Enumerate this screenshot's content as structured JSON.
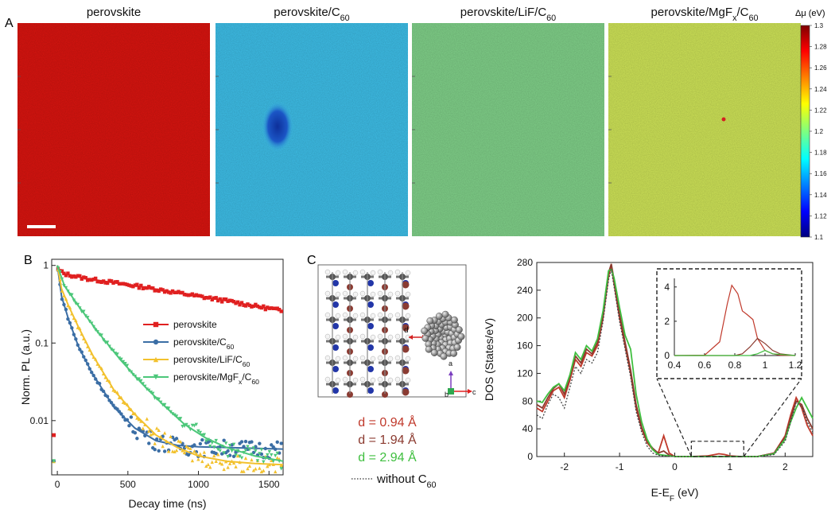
{
  "panel_labels": {
    "a": "A",
    "b": "B",
    "c": "C"
  },
  "maps": [
    {
      "title": "perovskite",
      "color": "#d8140f"
    },
    {
      "title": "perovskite/C",
      "sub": "60",
      "color": "#3dbde6"
    },
    {
      "title": "perovskite/LiF/C",
      "sub": "60",
      "color": "#7fcf88"
    },
    {
      "title": "perovskite/MgF",
      "sub_x": "x",
      "title2": "/C",
      "sub": "60",
      "color": "#cde257"
    }
  ],
  "colorbar": {
    "label": "Δμ (eV)",
    "ticks": [
      "1.3",
      "1.28",
      "1.26",
      "1.24",
      "1.22",
      "1.2",
      "1.18",
      "1.16",
      "1.14",
      "1.12",
      "1.1"
    ]
  },
  "chart_data": [
    {
      "type": "line",
      "panel": "B",
      "xlabel": "Decay time (ns)",
      "ylabel": "Norm. PL (a.u.)",
      "yscale": "log",
      "xlim": [
        -40,
        1600
      ],
      "ylim": [
        0.002,
        1.2
      ],
      "xticks": [
        "0",
        "500",
        "1000",
        "1500"
      ],
      "yticks": [
        "0.01",
        "0.1",
        "1"
      ],
      "legend_position": "center-right",
      "series": [
        {
          "name": "perovskite",
          "color": "#e02020",
          "marker": "square",
          "x": [
            0,
            5,
            50,
            200,
            400,
            600,
            800,
            1000,
            1200,
            1400,
            1600
          ],
          "y": [
            1,
            0.88,
            0.78,
            0.68,
            0.6,
            0.53,
            0.46,
            0.4,
            0.35,
            0.3,
            0.26
          ]
        },
        {
          "name": "perovskite/C",
          "sub": "60",
          "color": "#3b6ea5",
          "marker": "circle",
          "x": [
            0,
            30,
            80,
            150,
            250,
            400,
            550,
            700,
            850,
            1000,
            1200,
            1400,
            1600
          ],
          "y": [
            1,
            0.4,
            0.2,
            0.09,
            0.04,
            0.015,
            0.008,
            0.0055,
            0.0048,
            0.0046,
            0.0045,
            0.0044,
            0.0043
          ]
        },
        {
          "name": "perovskite/LiF/C",
          "sub": "60",
          "color": "#f2c12e",
          "marker": "triangle-up",
          "x": [
            0,
            30,
            80,
            150,
            250,
            400,
            550,
            700,
            850,
            1000,
            1200,
            1400,
            1600
          ],
          "y": [
            1,
            0.5,
            0.3,
            0.16,
            0.07,
            0.025,
            0.012,
            0.0065,
            0.0045,
            0.0035,
            0.003,
            0.0028,
            0.0027
          ]
        },
        {
          "name": "perovskite/MgF",
          "sub_x": "x",
          "name2": "/C",
          "sub": "60",
          "color": "#4cc77a",
          "marker": "triangle-down",
          "x": [
            0,
            50,
            150,
            300,
            450,
            600,
            750,
            900,
            1050,
            1200,
            1400,
            1600
          ],
          "y": [
            1,
            0.55,
            0.3,
            0.13,
            0.06,
            0.03,
            0.016,
            0.009,
            0.006,
            0.0045,
            0.0035,
            0.003
          ]
        }
      ]
    },
    {
      "type": "line",
      "panel": "C",
      "xlabel": "E-E",
      "xlabel_sub": "F",
      "xlabel_unit": " (eV)",
      "ylabel": "DOS (States/eV)",
      "xlim": [
        -2.5,
        2.5
      ],
      "ylim": [
        0,
        280
      ],
      "xticks": [
        "-2",
        "-1",
        "0",
        "1",
        "2"
      ],
      "yticks": [
        "0",
        "40",
        "80",
        "120",
        "160",
        "200",
        "240",
        "280"
      ],
      "series": [
        {
          "name": "d = 0.94 Å",
          "color": "#c0392b",
          "x": [
            -2.5,
            -2.4,
            -2.3,
            -2.2,
            -2.1,
            -2.0,
            -1.9,
            -1.8,
            -1.7,
            -1.6,
            -1.5,
            -1.4,
            -1.3,
            -1.2,
            -1.15,
            -1.1,
            -1.0,
            -0.9,
            -0.8,
            -0.7,
            -0.6,
            -0.5,
            -0.4,
            -0.3,
            -0.2,
            -0.1,
            0,
            0.3,
            0.6,
            0.8,
            0.9,
            1.0,
            1.2,
            1.5,
            1.8,
            2.0,
            2.1,
            2.2,
            2.3,
            2.4,
            2.5
          ],
          "y": [
            70,
            65,
            80,
            95,
            100,
            85,
            110,
            140,
            130,
            150,
            145,
            160,
            200,
            260,
            275,
            250,
            200,
            160,
            120,
            70,
            40,
            20,
            10,
            5,
            30,
            5,
            0,
            0,
            1,
            4,
            3,
            1,
            0,
            0,
            5,
            30,
            60,
            85,
            70,
            45,
            30
          ]
        },
        {
          "name": "d = 1.94 Å",
          "color": "#8b3a2f",
          "x": [
            -2.5,
            -2.4,
            -2.3,
            -2.2,
            -2.1,
            -2.0,
            -1.9,
            -1.8,
            -1.7,
            -1.6,
            -1.5,
            -1.4,
            -1.3,
            -1.2,
            -1.15,
            -1.1,
            -1.0,
            -0.9,
            -0.8,
            -0.7,
            -0.6,
            -0.5,
            -0.4,
            -0.3,
            -0.2,
            -0.1,
            0,
            0.5,
            1.0,
            1.5,
            1.8,
            2.0,
            2.1,
            2.2,
            2.3,
            2.4,
            2.5
          ],
          "y": [
            75,
            70,
            85,
            98,
            105,
            90,
            115,
            145,
            135,
            155,
            148,
            165,
            205,
            265,
            278,
            255,
            205,
            165,
            125,
            75,
            42,
            22,
            12,
            5,
            8,
            2,
            0,
            0,
            0,
            0,
            5,
            28,
            55,
            80,
            75,
            55,
            40
          ]
        },
        {
          "name": "d = 2.94 Å",
          "color": "#3fbf3f",
          "x": [
            -2.5,
            -2.4,
            -2.3,
            -2.2,
            -2.1,
            -2.0,
            -1.9,
            -1.8,
            -1.7,
            -1.6,
            -1.5,
            -1.4,
            -1.3,
            -1.2,
            -1.15,
            -1.1,
            -1.0,
            -0.9,
            -0.8,
            -0.7,
            -0.6,
            -0.5,
            -0.4,
            -0.3,
            -0.2,
            -0.1,
            0,
            0.5,
            1.0,
            1.5,
            1.8,
            2.0,
            2.1,
            2.2,
            2.3,
            2.4,
            2.5
          ],
          "y": [
            80,
            78,
            90,
            100,
            105,
            95,
            118,
            150,
            140,
            160,
            152,
            170,
            210,
            268,
            270,
            258,
            215,
            175,
            155,
            90,
            50,
            25,
            10,
            3,
            2,
            1,
            0,
            0,
            0,
            0,
            4,
            25,
            50,
            70,
            85,
            70,
            55
          ]
        },
        {
          "name": "without C",
          "sub": "60",
          "color": "#444444",
          "dash": true,
          "x": [
            -2.5,
            -2.4,
            -2.3,
            -2.2,
            -2.1,
            -2.0,
            -1.9,
            -1.8,
            -1.7,
            -1.6,
            -1.5,
            -1.4,
            -1.3,
            -1.2,
            -1.15,
            -1.1,
            -1.0,
            -0.9,
            -0.8,
            -0.7,
            -0.6,
            -0.5,
            -0.4,
            -0.3,
            -0.2,
            0,
            0.5,
            1.0,
            1.5,
            1.8,
            2.0,
            2.1,
            2.2,
            2.3,
            2.4,
            2.5
          ],
          "y": [
            60,
            55,
            75,
            90,
            85,
            70,
            100,
            130,
            120,
            140,
            135,
            150,
            195,
            255,
            270,
            245,
            195,
            155,
            115,
            65,
            35,
            15,
            5,
            2,
            1,
            0,
            0,
            0,
            0,
            3,
            22,
            50,
            78,
            72,
            50,
            35
          ]
        }
      ]
    },
    {
      "type": "line",
      "panel": "C-inset",
      "xlim": [
        0.4,
        1.2
      ],
      "ylim": [
        0,
        4.5
      ],
      "xticks": [
        "0.4",
        "0.6",
        "0.8",
        "1",
        "1.2"
      ],
      "yticks": [
        "0",
        "2",
        "4"
      ],
      "series": [
        {
          "color": "#c0392b",
          "x": [
            0.4,
            0.6,
            0.7,
            0.75,
            0.78,
            0.82,
            0.85,
            0.88,
            0.92,
            0.95,
            1.0,
            1.05,
            1.1,
            1.2
          ],
          "y": [
            0,
            0.02,
            0.8,
            3.0,
            4.1,
            3.6,
            2.6,
            2.4,
            2.1,
            1.0,
            0.3,
            0.1,
            0.02,
            0
          ]
        },
        {
          "color": "#8b3a2f",
          "x": [
            0.4,
            0.8,
            0.85,
            0.9,
            0.95,
            1.0,
            1.05,
            1.1,
            1.2
          ],
          "y": [
            0,
            0,
            0.1,
            0.5,
            1.0,
            0.7,
            0.3,
            0.1,
            0
          ]
        },
        {
          "color": "#3fbf3f",
          "x": [
            0.4,
            0.9,
            0.95,
            1.0,
            1.05,
            1.2
          ],
          "y": [
            0,
            0,
            0.1,
            0.3,
            0.1,
            0
          ]
        }
      ]
    }
  ],
  "structure": {
    "d_marker": "d",
    "axis_a": "a",
    "axis_b": "b",
    "axis_c": "c",
    "legend": [
      {
        "text": "d = 0.94 Å",
        "color": "#c0392b"
      },
      {
        "text": "d = 1.94 Å",
        "color": "#8b3a2f"
      },
      {
        "text": "d = 2.94 Å",
        "color": "#3fbf3f"
      }
    ],
    "without_label": "without C",
    "without_sub": "60"
  }
}
